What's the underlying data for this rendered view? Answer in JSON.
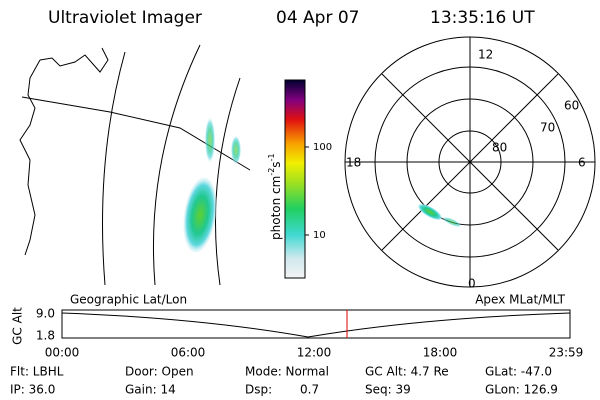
{
  "header": {
    "instrument": "Ultraviolet Imager",
    "date": "04 Apr 07",
    "time": "13:35:16 UT"
  },
  "colorbar": {
    "label": "photon cm",
    "exp1": "-2",
    "unit2": "s",
    "exp2": "-1",
    "ticks": [
      "100",
      "10"
    ]
  },
  "polar": {
    "mlt_labels": [
      "12",
      "6",
      "0",
      "18"
    ],
    "lat_labels": [
      "60",
      "70",
      "80"
    ]
  },
  "timeline": {
    "left_label": "Geographic Lat/Lon",
    "right_label": "Apex MLat/MLT",
    "axis_label": "GC Alt",
    "y_labels": [
      "9.0",
      "1.8"
    ],
    "time_labels": [
      "00:00",
      "06:00",
      "12:00",
      "18:00",
      "23:59"
    ]
  },
  "footer": {
    "rows": [
      [
        "Flt: LBHL",
        "Door: Open",
        "Mode: Normal",
        "GC Alt: 4.7 Re",
        "GLat: -47.0"
      ],
      [
        "IP: 36.0",
        "Gain: 14",
        "Dsp:",
        "Seq: 39",
        "GLon: 126.9"
      ]
    ],
    "dsp_value": "0.7"
  }
}
